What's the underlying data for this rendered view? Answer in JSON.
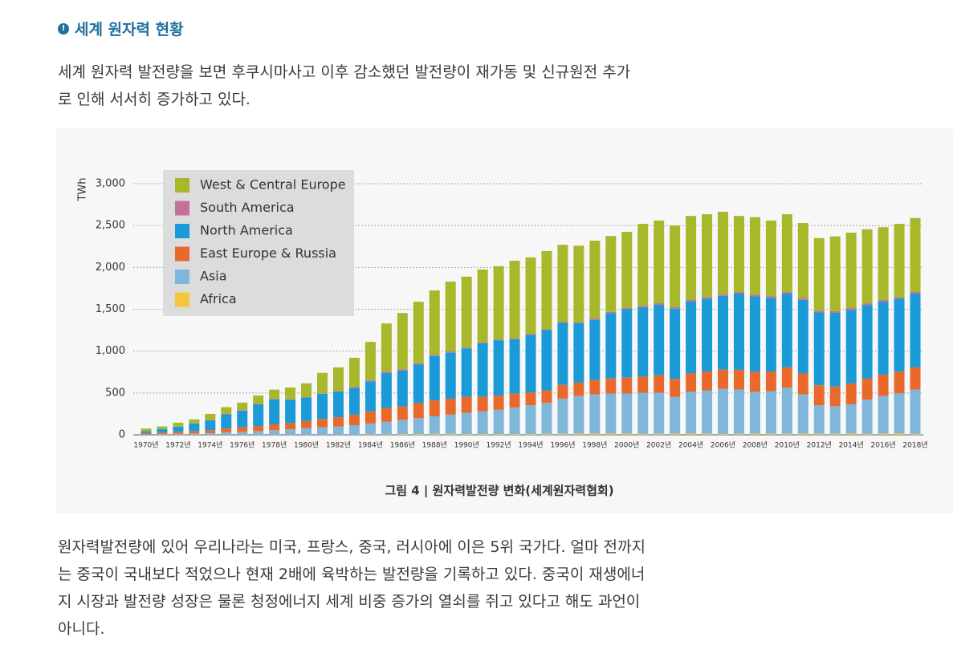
{
  "heading": "세계 원자력 현황",
  "paragraphs": [
    [
      "세계 원자력 발전량을 보면 후쿠시마사고 이후 감소했던 발전량이 재가동 및 신규원전 추가",
      "로 인해 서서히 증가하고 있다."
    ],
    [
      "원자력발전량에 있어 우리나라는 미국, 프랑스, 중국, 러시아에 이은 5위 국가다. 얼마 전까지",
      "는 중국이 국내보다 적었으나 현재 2배에 육박하는 발전량을 기록하고 있다. 중국이 재생에너",
      "지 시장과 발전량 성장은 물론 청정에너지 세계 비중 증가의 열쇠를 쥐고 있다고 해도 과언이",
      "아니다."
    ]
  ],
  "chart_data": {
    "type": "stacked_bar",
    "caption": "그림 4 | 원자력발전량 변화(세계원자력협회)",
    "y_label": "TWh",
    "categories": [
      "1970년",
      null,
      "1972년",
      null,
      "1974년",
      null,
      "1976년",
      null,
      "1978년",
      null,
      "1980년",
      null,
      "1982년",
      null,
      "1984년",
      null,
      "1986년",
      null,
      "1988년",
      null,
      "1990년",
      null,
      "1992년",
      null,
      "1994년",
      null,
      "1996년",
      null,
      "1998년",
      null,
      "2000년",
      null,
      "2002년",
      null,
      "2004년",
      null,
      "2006년",
      null,
      "2008년",
      null,
      "2010년",
      null,
      "2012년",
      null,
      "2014년",
      null,
      "2016년",
      null,
      "2018년"
    ],
    "series": [
      {
        "name": "West & Central Europe",
        "color": "#a7b82b",
        "values": [
          30,
          32,
          48,
          50,
          70,
          80,
          90,
          100,
          110,
          140,
          165,
          245,
          280,
          350,
          460,
          575,
          671,
          736,
          769,
          834,
          847,
          871,
          876,
          928,
          916,
          934,
          923,
          917,
          931,
          907,
          907,
          979,
          988,
          972,
          1001,
          988,
          985,
          908,
          927,
          903,
          928,
          897,
          868,
          893,
          901,
          884,
          870,
          875,
          884
        ]
      },
      {
        "name": "South America",
        "color": "#c3709d",
        "values": [
          0,
          0,
          0,
          0,
          5,
          5,
          5,
          5,
          5,
          5,
          5,
          5,
          5,
          10,
          10,
          15,
          15,
          15,
          15,
          15,
          10,
          10,
          10,
          10,
          10,
          10,
          10,
          10,
          15,
          15,
          15,
          15,
          20,
          20,
          20,
          20,
          20,
          20,
          20,
          20,
          20,
          20,
          20,
          20,
          20,
          20,
          20,
          20,
          20
        ]
      },
      {
        "name": "North America",
        "color": "#1a9ad7",
        "values": [
          25,
          40,
          60,
          90,
          120,
          170,
          200,
          260,
          300,
          280,
          280,
          300,
          310,
          320,
          360,
          420,
          430,
          460,
          530,
          550,
          580,
          640,
          660,
          650,
          690,
          720,
          740,
          710,
          720,
          780,
          820,
          830,
          840,
          840,
          860,
          870,
          880,
          910,
          900,
          880,
          880,
          880,
          870,
          880,
          880,
          880,
          870,
          870,
          880
        ]
      },
      {
        "name": "East Europe & Russia",
        "color": "#e9692b",
        "values": [
          15,
          20,
          25,
          30,
          35,
          45,
          55,
          60,
          70,
          75,
          85,
          100,
          110,
          125,
          145,
          165,
          160,
          180,
          190,
          190,
          190,
          175,
          170,
          165,
          150,
          150,
          165,
          160,
          170,
          180,
          190,
          195,
          210,
          215,
          220,
          225,
          230,
          235,
          240,
          235,
          245,
          250,
          240,
          235,
          250,
          250,
          255,
          260,
          265
        ]
      },
      {
        "name": "Asia",
        "color": "#7fb7db",
        "values": [
          5,
          8,
          12,
          15,
          20,
          30,
          35,
          45,
          55,
          65,
          80,
          90,
          100,
          115,
          130,
          150,
          170,
          190,
          210,
          230,
          255,
          270,
          290,
          320,
          345,
          370,
          420,
          450,
          470,
          480,
          480,
          490,
          490,
          440,
          500,
          520,
          540,
          530,
          500,
          510,
          550,
          470,
          340,
          330,
          350,
          410,
          450,
          480,
          530
        ]
      },
      {
        "name": "Africa",
        "color": "#f4c63d",
        "values": [
          0,
          0,
          0,
          0,
          0,
          0,
          0,
          0,
          0,
          0,
          0,
          0,
          0,
          0,
          5,
          5,
          9,
          9,
          11,
          11,
          8,
          9,
          9,
          7,
          9,
          11,
          12,
          13,
          14,
          13,
          13,
          11,
          12,
          13,
          14,
          12,
          10,
          12,
          13,
          12,
          12,
          13,
          12,
          12,
          14,
          11,
          15,
          15,
          11
        ]
      }
    ],
    "ylim": [
      0,
      3000
    ],
    "yticks": [
      0,
      500,
      {
        "value": 1000,
        "label": "1,000"
      },
      {
        "value": 1500,
        "label": "1,500"
      },
      {
        "value": 2000,
        "label": "2,000"
      },
      {
        "value": 2500,
        "label": "2,500"
      },
      {
        "value": 3000,
        "label": "3,000"
      }
    ],
    "grid": true,
    "legend": "upper left"
  }
}
